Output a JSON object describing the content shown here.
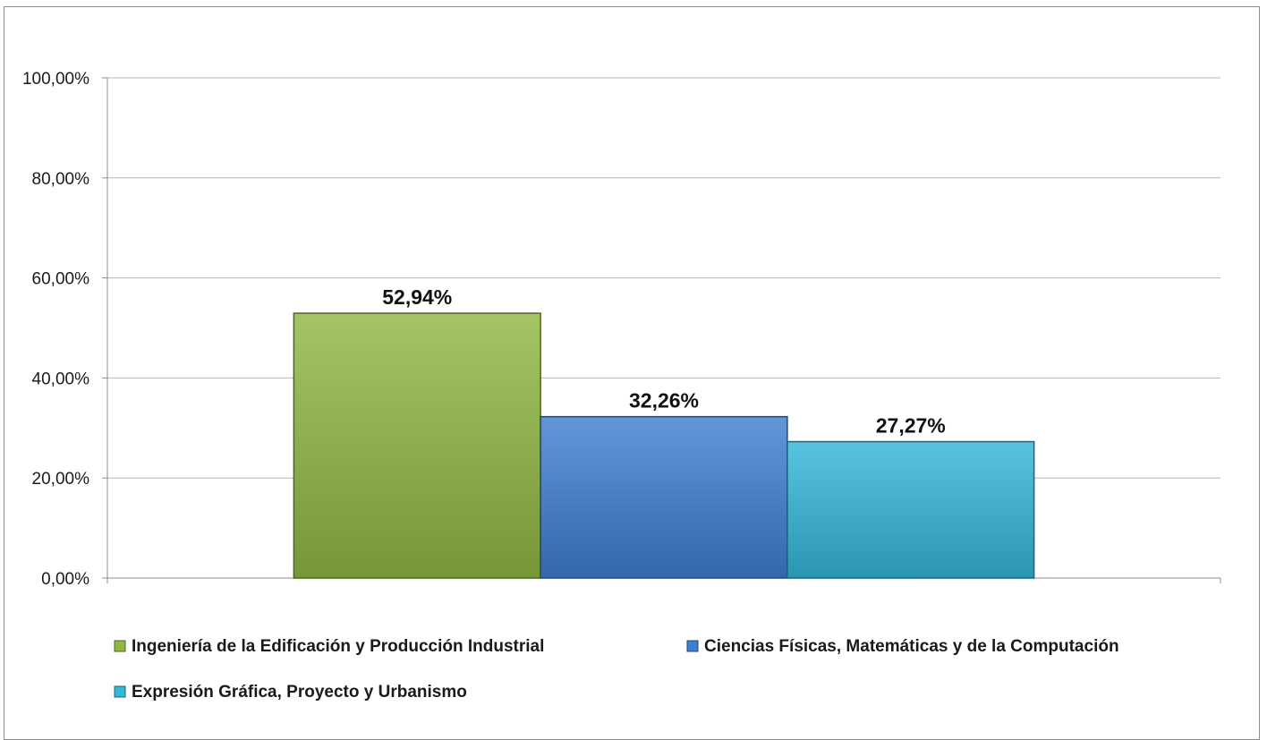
{
  "chart_data": {
    "type": "bar",
    "title": "",
    "xlabel": "",
    "ylabel": "",
    "ylim": [
      0,
      100
    ],
    "y_ticks": [
      "0,00%",
      "20,00%",
      "40,00%",
      "60,00%",
      "80,00%",
      "100,00%"
    ],
    "grid": true,
    "legend_position": "bottom",
    "series": [
      {
        "name": "Ingeniería de la Edificación y Producción Industrial",
        "value": 52.94,
        "label": "52,94%",
        "color": "#8fb842"
      },
      {
        "name": "Ciencias Físicas, Matemáticas y de la Computación",
        "value": 32.26,
        "label": "32,26%",
        "color": "#3f7fcf"
      },
      {
        "name": "Expresión Gráfica, Proyecto y Urbanismo",
        "value": 27.27,
        "label": "27,27%",
        "color": "#35b7d8"
      }
    ]
  }
}
